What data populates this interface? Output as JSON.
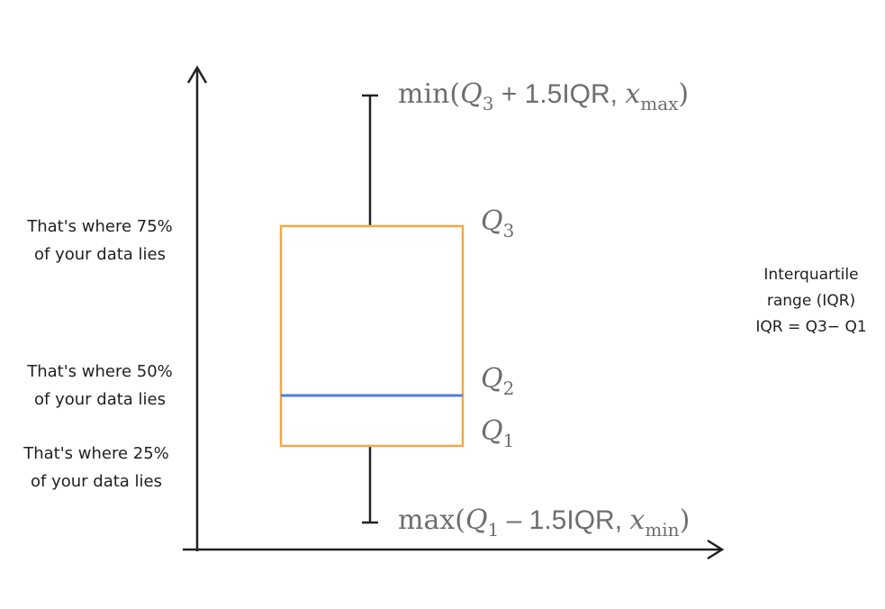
{
  "annotations": {
    "q3_note": [
      "That's where 75%",
      "of your data lies"
    ],
    "q2_note": [
      "That's where 50%",
      "of your data lies"
    ],
    "q1_note": [
      "That's where 25%",
      "of your data lies"
    ],
    "iqr_note": [
      "Interquartile",
      "range (IQR)",
      "IQR = Q3− Q1"
    ]
  },
  "labels": {
    "upper_whisker": {
      "func": "min(",
      "q": "Q",
      "q_sub": "3",
      "mid": " + 1.5IQR, ",
      "x": "x",
      "x_sub": "max",
      "close": ")"
    },
    "lower_whisker": {
      "func": "max(",
      "q": "Q",
      "q_sub": "1",
      "mid": " –  1.5IQR, ",
      "x": "x",
      "x_sub": "min",
      "close": ")"
    },
    "q3": {
      "q": "Q",
      "sub": "3"
    },
    "q2": {
      "q": "Q",
      "sub": "2"
    },
    "q1": {
      "q": "Q",
      "sub": "1"
    }
  },
  "colors": {
    "box": "#f5a742",
    "median": "#4a7fe0",
    "ink": "#222222",
    "math": "#6e6e6e"
  }
}
